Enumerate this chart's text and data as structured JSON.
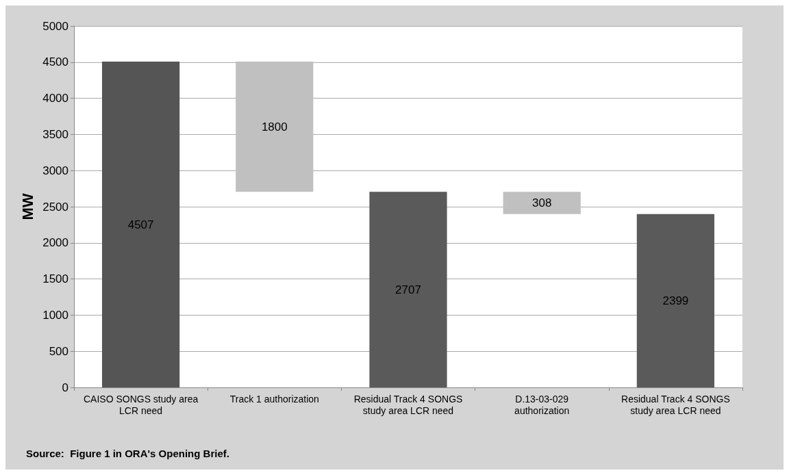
{
  "chart_data": {
    "type": "bar",
    "ylabel": "MW",
    "categories": [
      "CAISO SONGS study area LCR need",
      "Track 1 authorization",
      "Residual Track 4 SONGS study area LCR need",
      "D.13-03-029 authorization",
      "Residual Track 4 SONGS study area LCR need"
    ],
    "values": [
      4507,
      1800,
      2707,
      308,
      2399
    ],
    "base": [
      0,
      2707,
      0,
      2399,
      0
    ],
    "colors": [
      "#555555",
      "#c0c0c0",
      "#5a5a5a",
      "#c0c0c0",
      "#5a5a5a"
    ],
    "ylim": [
      0,
      5000
    ],
    "yticks": [
      0,
      500,
      1000,
      1500,
      2000,
      2500,
      3000,
      3500,
      4000,
      4500,
      5000
    ],
    "grid": "y",
    "data_labels": true,
    "annotations": [
      "Source:  Figure 1 in ORA's Opening Brief."
    ]
  }
}
